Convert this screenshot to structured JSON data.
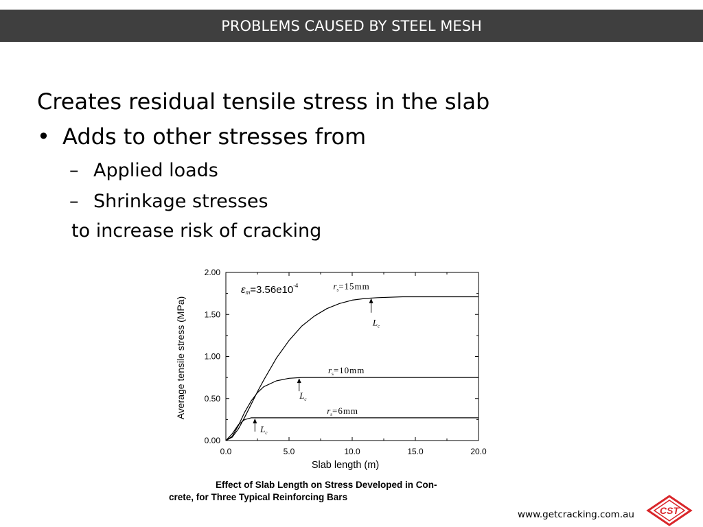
{
  "header": {
    "title": "PROBLEMS CAUSED BY STEEL MESH"
  },
  "slide": {
    "heading": "Creates residual tensile stress in the slab",
    "bullet": "•",
    "point": "Adds to other stresses from",
    "dash": "–",
    "sub_items": [
      "Applied loads",
      "Shrinkage stresses"
    ],
    "conclusion": "to increase risk of cracking"
  },
  "chart_data": {
    "type": "line",
    "x": [
      0.0,
      0.5,
      1.0,
      1.5,
      2.0,
      2.5,
      3.0,
      4.0,
      5.0,
      6.0,
      7.0,
      8.0,
      9.0,
      10.0,
      11.0,
      12.0,
      14.0,
      16.0,
      18.0,
      20.0
    ],
    "series": [
      {
        "name": "r_s = 15mm",
        "values": [
          0.0,
          0.04,
          0.14,
          0.28,
          0.43,
          0.58,
          0.72,
          0.98,
          1.19,
          1.36,
          1.48,
          1.57,
          1.63,
          1.67,
          1.69,
          1.7,
          1.71,
          1.71,
          1.71,
          1.71
        ]
      },
      {
        "name": "r_s = 10mm",
        "values": [
          0.0,
          0.05,
          0.18,
          0.34,
          0.47,
          0.57,
          0.64,
          0.71,
          0.74,
          0.75,
          0.75,
          0.75,
          0.75,
          0.75,
          0.75,
          0.75,
          0.75,
          0.75,
          0.75,
          0.75
        ]
      },
      {
        "name": "r_s = 6mm",
        "values": [
          0.0,
          0.08,
          0.19,
          0.25,
          0.27,
          0.27,
          0.27,
          0.27,
          0.27,
          0.27,
          0.27,
          0.27,
          0.27,
          0.27,
          0.27,
          0.27,
          0.27,
          0.27,
          0.27,
          0.27
        ]
      }
    ],
    "xlabel": "Slab length (m)",
    "ylabel": "Average tensile stress (MPa)",
    "xlim": [
      0,
      20
    ],
    "ylim": [
      0,
      2
    ],
    "xticks": [
      "0.0",
      "5.0",
      "10.0",
      "15.0",
      "20.0"
    ],
    "yticks": [
      "0.00",
      "0.50",
      "1.00",
      "1.50",
      "2.00"
    ],
    "annotation_strain": "ε",
    "annotation_strain_sub": "m",
    "annotation_strain_value": "=3.56e10",
    "annotation_strain_exp": "-4",
    "labels": {
      "r15": "=15mm",
      "r10": "=10mm",
      "r6": "=6mm",
      "r_symbol": "r",
      "r_sub": "s",
      "lc": "L",
      "lc_sub": "c"
    },
    "lc_markers": [
      {
        "series": "r_s = 15mm",
        "x": 11.5,
        "y": 1.7
      },
      {
        "series": "r_s = 10mm",
        "x": 5.8,
        "y": 0.75
      },
      {
        "series": "r_s = 6mm",
        "x": 2.3,
        "y": 0.27
      }
    ],
    "grid": false,
    "legend": "inline labels"
  },
  "caption": {
    "line1": "Effect of Slab Length on Stress Developed in Con-",
    "line2": "crete, for Three Typical Reinforcing Bars"
  },
  "footer": {
    "url": "www.getcracking.com.au",
    "logo_text": "CST"
  },
  "colors": {
    "header_bg": "#3f3f3f",
    "logo_red": "#d9262a"
  }
}
